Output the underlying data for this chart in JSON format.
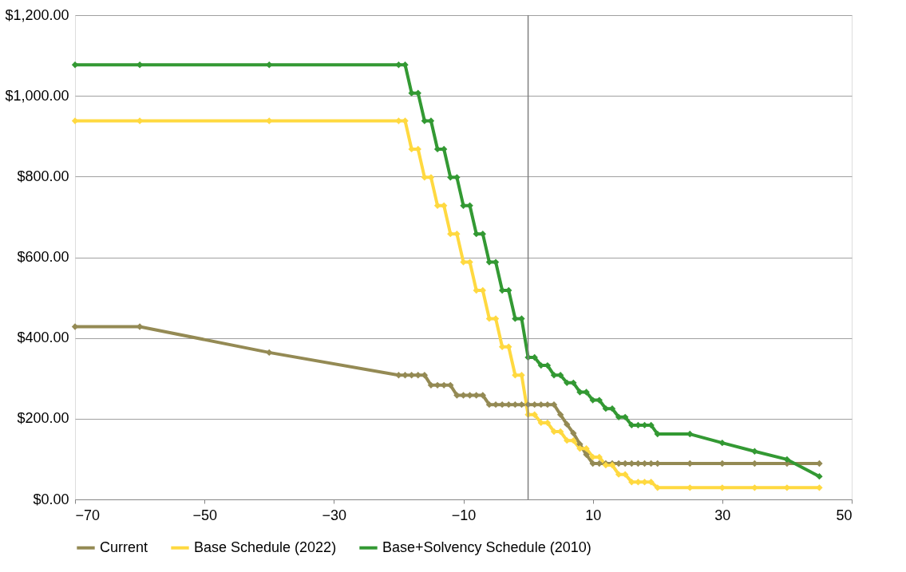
{
  "chart_data": {
    "type": "line",
    "x": [
      -70,
      -60,
      -40,
      -20,
      -19,
      -18,
      -17,
      -16,
      -15,
      -14,
      -13,
      -12,
      -11,
      -10,
      -9,
      -8,
      -7,
      -6,
      -5,
      -4,
      -3,
      -2,
      -1,
      0,
      1,
      2,
      3,
      4,
      5,
      6,
      7,
      8,
      9,
      10,
      11,
      12,
      13,
      14,
      15,
      16,
      17,
      18,
      19,
      20,
      25,
      30,
      35,
      40,
      45
    ],
    "series": [
      {
        "name": "Current",
        "color": "#948a54",
        "values": [
          428,
          428,
          364,
          308,
          308,
          308,
          308,
          308,
          283,
          283,
          283,
          283,
          258,
          258,
          258,
          258,
          258,
          235,
          235,
          235,
          235,
          235,
          235,
          235,
          235,
          235,
          235,
          235,
          210,
          186,
          164,
          137,
          111,
          89,
          89,
          89,
          89,
          89,
          89,
          89,
          89,
          89,
          89,
          89,
          89,
          89,
          89,
          89,
          89
        ]
      },
      {
        "name": "Base Schedule (2022)",
        "color": "#ffd940",
        "values": [
          938,
          938,
          938,
          938,
          938,
          868,
          868,
          798,
          798,
          728,
          728,
          658,
          658,
          588,
          588,
          518,
          518,
          448,
          448,
          378,
          378,
          308,
          308,
          210,
          210,
          190,
          190,
          168,
          168,
          146,
          146,
          126,
          126,
          105,
          105,
          85,
          85,
          62,
          62,
          43,
          43,
          43,
          43,
          29,
          29,
          29,
          29,
          29,
          29
        ]
      },
      {
        "name": "Base+Solvency Schedule (2010)",
        "color": "#339933",
        "values": [
          1077,
          1077,
          1077,
          1077,
          1077,
          1007,
          1007,
          938,
          938,
          868,
          868,
          798,
          798,
          728,
          728,
          658,
          658,
          588,
          588,
          518,
          518,
          448,
          448,
          352,
          352,
          332,
          332,
          308,
          308,
          289,
          289,
          266,
          266,
          246,
          246,
          225,
          225,
          204,
          204,
          184,
          184,
          184,
          184,
          162,
          162,
          140,
          119,
          99,
          57
        ]
      }
    ],
    "xlim": [
      -70,
      50
    ],
    "xticks": [
      -70,
      -50,
      -30,
      -10,
      10,
      30,
      50
    ],
    "ylim": [
      0,
      1200
    ],
    "yticks": [
      {
        "value": 0,
        "label": "$0.00"
      },
      {
        "value": 200,
        "label": "$200.00"
      },
      {
        "value": 400,
        "label": "$400.00"
      },
      {
        "value": 600,
        "label": "$600.00"
      },
      {
        "value": 800,
        "label": "$800.00"
      },
      {
        "value": 1000,
        "label": "$1,000.00"
      },
      {
        "value": 1200,
        "label": "$1,200.00"
      }
    ],
    "ref_lines": [
      {
        "axis": "x",
        "value": 0,
        "color": "#808080"
      }
    ],
    "grid": "y",
    "legend": "bottom",
    "marker": "diamond",
    "line_style": "solid"
  }
}
